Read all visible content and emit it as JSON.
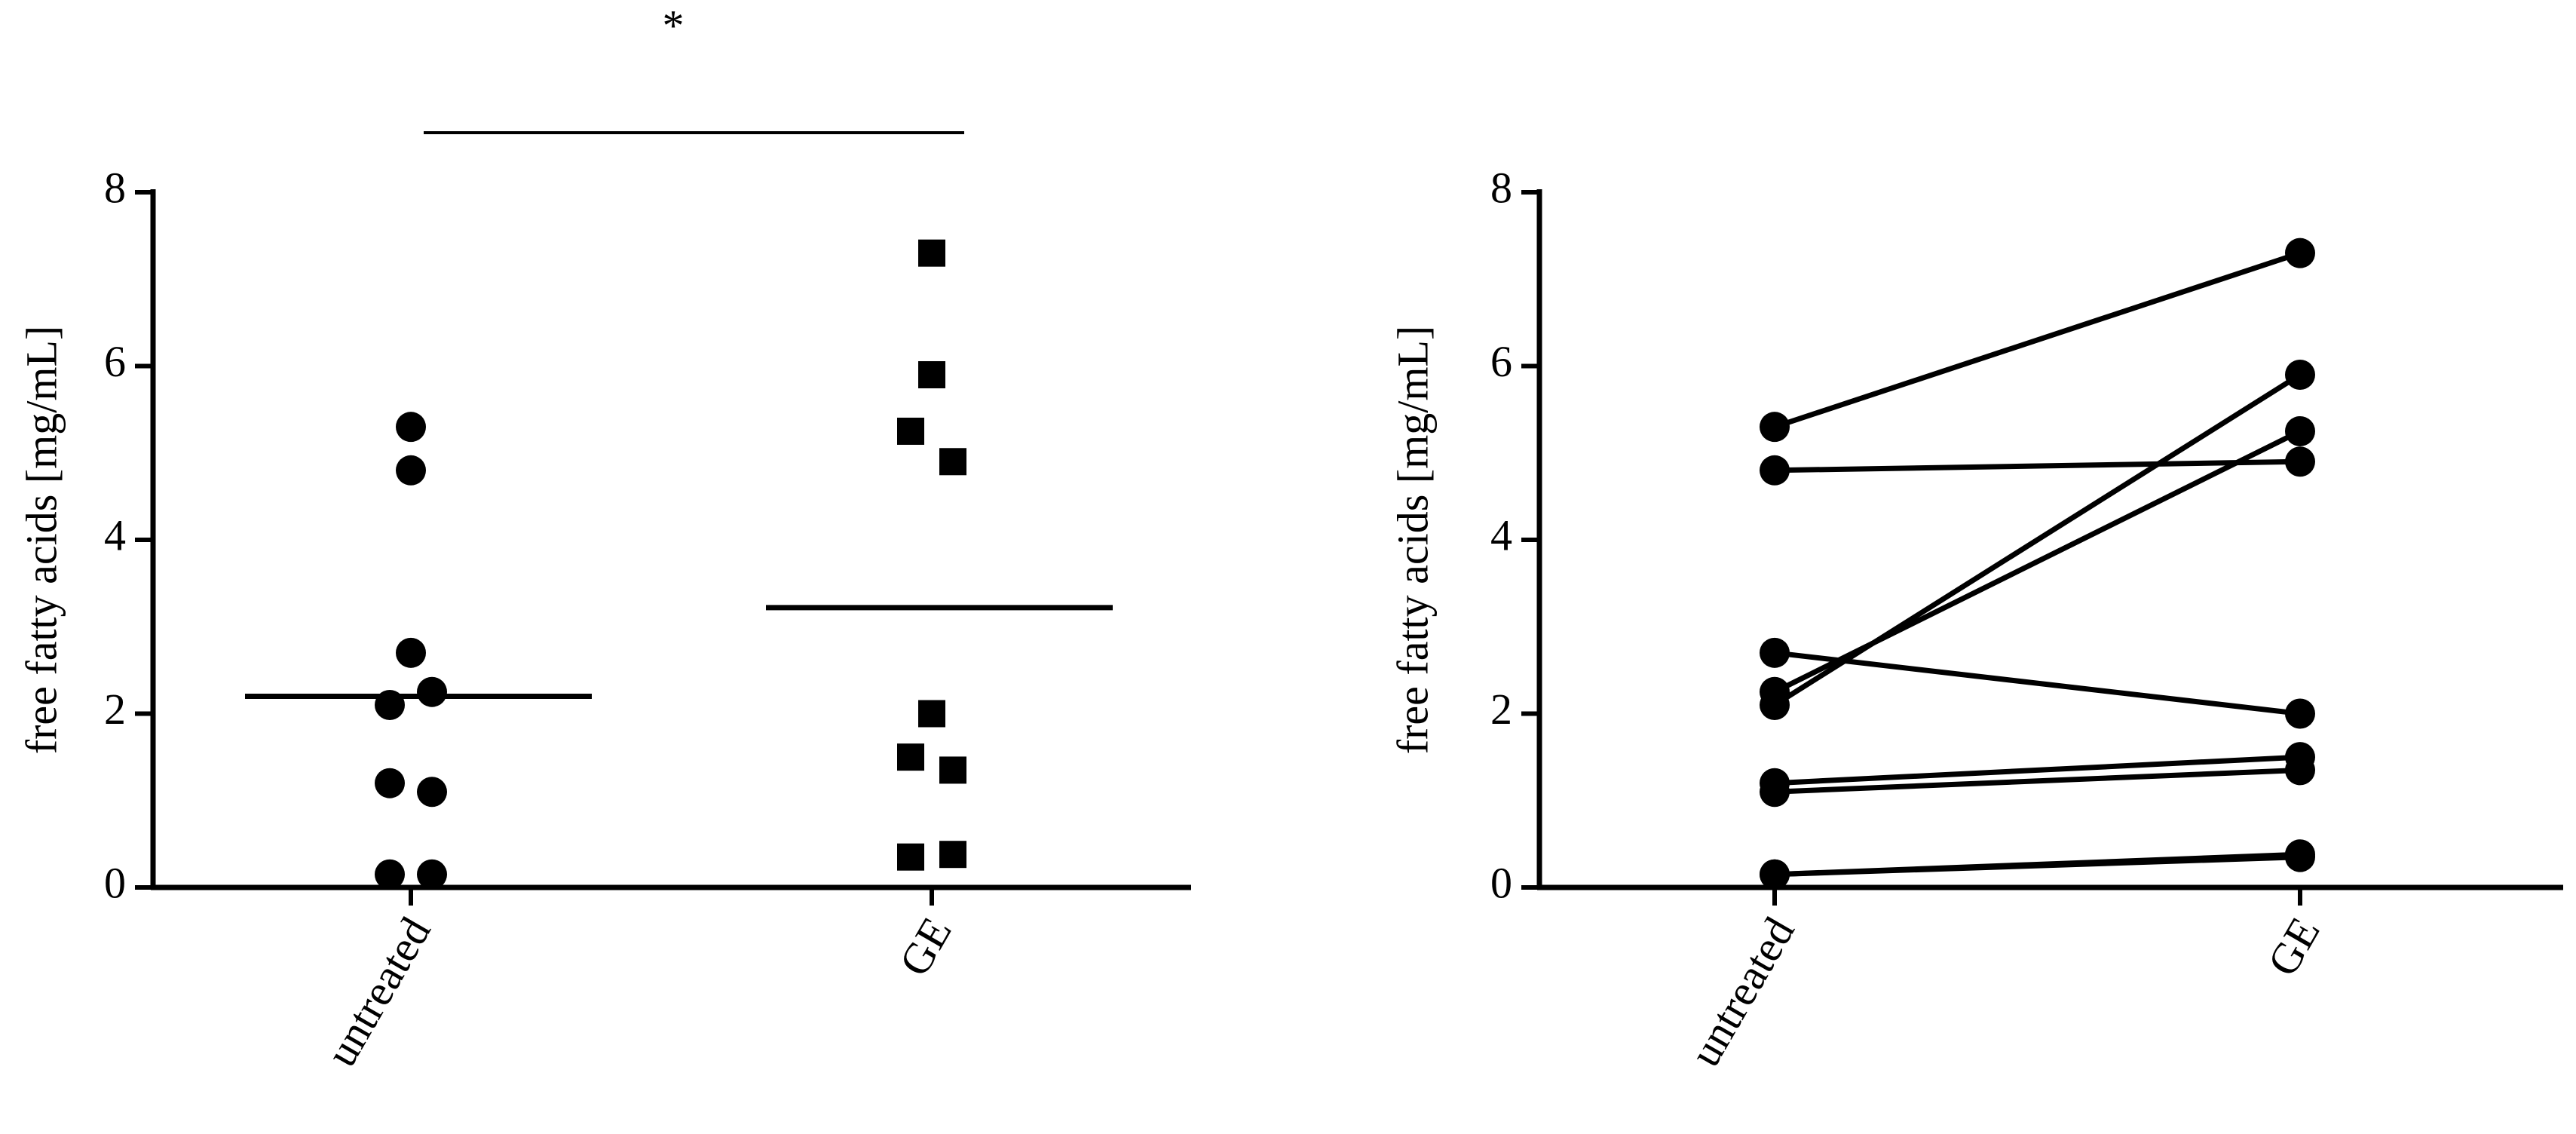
{
  "chart_data": [
    {
      "type": "dot",
      "annotation": "*",
      "ylabel": "free fatty acids [mg/mL]",
      "categories": [
        "untreated",
        "GE"
      ],
      "groups": [
        {
          "marker": "circle",
          "color": "#000000",
          "values": [
            5.3,
            4.8,
            2.7,
            2.1,
            2.25,
            1.2,
            1.1,
            0.15,
            0.15
          ],
          "mean": 2.2
        },
        {
          "marker": "square",
          "color": "#000000",
          "values": [
            7.3,
            5.9,
            5.25,
            4.9,
            2.0,
            1.5,
            1.35,
            0.35,
            0.38
          ],
          "mean": 3.22
        }
      ],
      "ylim": [
        0,
        8
      ],
      "yticks": [
        0,
        2,
        4,
        6,
        8
      ]
    },
    {
      "type": "paired",
      "ylabel": "free fatty acids [mg/mL]",
      "categories": [
        "untreated",
        "GE"
      ],
      "color": "#000000",
      "values": [
        [
          5.3,
          7.3
        ],
        [
          4.8,
          4.9
        ],
        [
          2.7,
          2.0
        ],
        [
          2.25,
          5.25
        ],
        [
          2.1,
          5.9
        ],
        [
          1.2,
          1.5
        ],
        [
          1.1,
          1.35
        ],
        [
          0.15,
          0.35
        ],
        [
          0.15,
          0.38
        ]
      ],
      "ylim": [
        0,
        8
      ],
      "yticks": [
        0,
        2,
        4,
        6,
        8
      ]
    }
  ]
}
